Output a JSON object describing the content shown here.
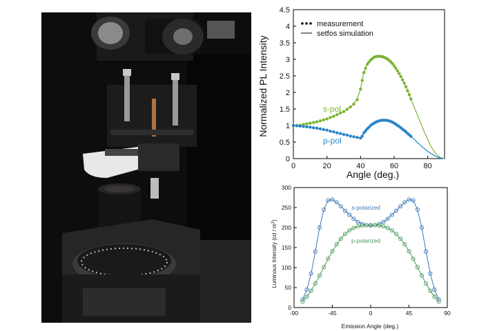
{
  "photo": {
    "description_icon": "goniometer-setup-photo"
  },
  "chart_data": [
    {
      "type": "line",
      "title": "",
      "xlabel": "Angle (deg.)",
      "ylabel": "Normalized PL Intensity",
      "xlim": [
        0,
        90
      ],
      "ylim": [
        0,
        4.5
      ],
      "xticks": [
        0,
        20,
        40,
        60,
        80
      ],
      "yticks": [
        0,
        0.5,
        1,
        1.5,
        2,
        2.5,
        3,
        3.5,
        4,
        4.5
      ],
      "grid": false,
      "legend_position": "top-left",
      "legend": [
        {
          "marker": "dots",
          "label": "measurement"
        },
        {
          "marker": "line",
          "label": "setfos simulation"
        }
      ],
      "annotations": [
        {
          "text": "s-pol",
          "color": "#7ab532"
        },
        {
          "text": "p-pol",
          "color": "#2a85c9"
        }
      ],
      "series": [
        {
          "name": "s-pol",
          "kind": "simulation",
          "color": "#7ab532",
          "x": [
            0,
            5,
            10,
            15,
            20,
            25,
            30,
            35,
            38,
            40,
            41,
            42,
            44,
            46,
            48,
            50,
            52,
            54,
            56,
            58,
            60,
            62,
            64,
            66,
            68,
            70,
            72,
            74,
            76,
            78,
            80,
            82,
            84,
            86,
            88,
            90
          ],
          "y": [
            1.0,
            1.02,
            1.07,
            1.13,
            1.2,
            1.3,
            1.42,
            1.6,
            1.8,
            2.1,
            2.38,
            2.62,
            2.85,
            2.98,
            3.06,
            3.09,
            3.09,
            3.06,
            3.01,
            2.92,
            2.8,
            2.65,
            2.48,
            2.28,
            2.05,
            1.8,
            1.55,
            1.3,
            1.05,
            0.8,
            0.57,
            0.36,
            0.2,
            0.08,
            0.02,
            0.0
          ]
        },
        {
          "name": "s-pol",
          "kind": "measurement",
          "color": "#7ab532",
          "x": [
            0,
            2,
            4,
            6,
            8,
            10,
            12,
            14,
            16,
            18,
            20,
            22,
            24,
            26,
            28,
            30,
            32,
            34,
            36,
            38,
            40,
            41,
            42,
            43,
            44,
            45,
            46,
            47,
            48,
            49,
            50,
            51,
            52,
            53,
            54,
            55,
            56,
            57,
            58,
            59,
            60,
            61,
            62,
            63,
            64,
            65,
            66,
            67,
            68,
            69,
            70
          ],
          "y": [
            1.0,
            1.0,
            1.01,
            1.03,
            1.05,
            1.07,
            1.09,
            1.11,
            1.14,
            1.17,
            1.2,
            1.24,
            1.28,
            1.33,
            1.38,
            1.42,
            1.49,
            1.56,
            1.65,
            1.78,
            2.1,
            2.36,
            2.6,
            2.73,
            2.85,
            2.92,
            2.98,
            3.02,
            3.06,
            3.08,
            3.09,
            3.09,
            3.09,
            3.08,
            3.06,
            3.04,
            3.01,
            2.97,
            2.92,
            2.87,
            2.8,
            2.73,
            2.65,
            2.57,
            2.48,
            2.38,
            2.28,
            2.17,
            2.05,
            1.93,
            1.8
          ]
        },
        {
          "name": "p-pol",
          "kind": "simulation",
          "color": "#2a85c9",
          "x": [
            0,
            5,
            10,
            15,
            20,
            25,
            30,
            35,
            38,
            40,
            41,
            42,
            44,
            46,
            48,
            50,
            52,
            54,
            56,
            58,
            60,
            62,
            64,
            66,
            68,
            70,
            72,
            74,
            76,
            78,
            80,
            82,
            84,
            86,
            88,
            90
          ],
          "y": [
            1.0,
            0.98,
            0.95,
            0.9,
            0.85,
            0.79,
            0.73,
            0.67,
            0.63,
            0.62,
            0.68,
            0.78,
            0.9,
            1.0,
            1.07,
            1.12,
            1.15,
            1.16,
            1.15,
            1.12,
            1.07,
            1.0,
            0.93,
            0.85,
            0.76,
            0.67,
            0.58,
            0.48,
            0.39,
            0.3,
            0.22,
            0.15,
            0.09,
            0.04,
            0.01,
            0.0
          ]
        },
        {
          "name": "p-pol",
          "kind": "measurement",
          "color": "#2a85c9",
          "x": [
            0,
            2,
            4,
            6,
            8,
            10,
            12,
            14,
            16,
            18,
            20,
            22,
            24,
            26,
            28,
            30,
            32,
            34,
            36,
            38,
            40,
            41,
            42,
            43,
            44,
            45,
            46,
            47,
            48,
            49,
            50,
            51,
            52,
            53,
            54,
            55,
            56,
            57,
            58,
            59,
            60,
            61,
            62,
            63,
            64,
            65,
            66,
            67,
            68,
            69,
            70
          ],
          "y": [
            1.0,
            0.99,
            0.98,
            0.97,
            0.96,
            0.95,
            0.93,
            0.92,
            0.9,
            0.88,
            0.86,
            0.83,
            0.81,
            0.78,
            0.76,
            0.73,
            0.71,
            0.68,
            0.66,
            0.64,
            0.62,
            0.68,
            0.78,
            0.84,
            0.9,
            0.95,
            1.0,
            1.04,
            1.07,
            1.1,
            1.12,
            1.14,
            1.15,
            1.16,
            1.16,
            1.16,
            1.15,
            1.14,
            1.12,
            1.1,
            1.07,
            1.04,
            1.0,
            0.97,
            0.93,
            0.89,
            0.85,
            0.81,
            0.76,
            0.72,
            0.67
          ]
        }
      ]
    },
    {
      "type": "line",
      "title": "",
      "xlabel": "Emission Angle (deg.)",
      "ylabel": "Luminous Intensity (cd / m²)",
      "ylabel_parts": {
        "main": "Luminous Intensity (cd / m",
        "sup": "2",
        "end": ")"
      },
      "xlim": [
        -90,
        90
      ],
      "ylim": [
        0,
        300
      ],
      "xticks": [
        -90,
        -45,
        0,
        45,
        90
      ],
      "yticks": [
        0,
        50,
        100,
        150,
        200,
        250,
        300
      ],
      "grid": false,
      "annotations": [
        {
          "text": "s-polarized",
          "color": "#3c78b8"
        },
        {
          "text": "p-polarized",
          "color": "#4a9a5c"
        }
      ],
      "series": [
        {
          "name": "s-polarized",
          "color": "#3c78b8",
          "marker": "open-circle",
          "x": [
            -80,
            -75,
            -70,
            -65,
            -60,
            -55,
            -50,
            -45,
            -40,
            -35,
            -30,
            -25,
            -20,
            -15,
            -10,
            -5,
            0,
            5,
            10,
            15,
            20,
            25,
            30,
            35,
            40,
            45,
            50,
            55,
            60,
            65,
            70,
            75,
            80
          ],
          "y": [
            20,
            45,
            85,
            140,
            200,
            245,
            268,
            270,
            263,
            253,
            242,
            232,
            222,
            214,
            209,
            206,
            205,
            206,
            209,
            214,
            222,
            232,
            242,
            253,
            263,
            270,
            268,
            245,
            200,
            140,
            85,
            45,
            20
          ]
        },
        {
          "name": "p-polarized",
          "color": "#4a9a5c",
          "marker": "open-circle",
          "x": [
            -80,
            -75,
            -70,
            -65,
            -60,
            -55,
            -50,
            -45,
            -40,
            -35,
            -30,
            -25,
            -20,
            -15,
            -10,
            -5,
            0,
            5,
            10,
            15,
            20,
            25,
            30,
            35,
            40,
            45,
            50,
            55,
            60,
            65,
            70,
            75,
            80
          ],
          "y": [
            15,
            27,
            42,
            60,
            80,
            101,
            122,
            141,
            158,
            172,
            184,
            193,
            199,
            203,
            205,
            206,
            206,
            206,
            205,
            203,
            199,
            193,
            184,
            172,
            158,
            141,
            122,
            101,
            80,
            60,
            42,
            27,
            15
          ]
        }
      ]
    }
  ]
}
